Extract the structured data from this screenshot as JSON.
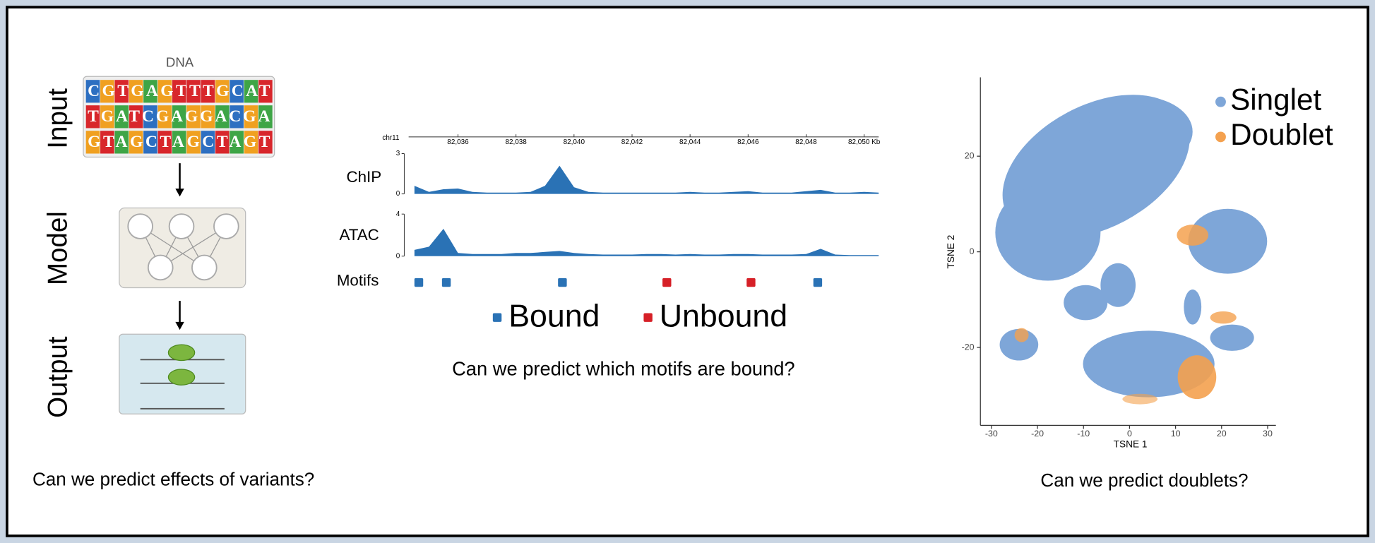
{
  "left_panel": {
    "dna_label": "DNA",
    "sequences": [
      "CGTGAGTTTGCAT",
      "TGATCGAGGACGA",
      "GTAGCTAGCTAGT"
    ],
    "steps": [
      "Input",
      "Model",
      "Output"
    ],
    "caption": "Can we predict effects of variants?"
  },
  "chart_data": [
    {
      "type": "area",
      "chromosome": "chr11",
      "xlim": [
        82034.3,
        82050.5
      ],
      "xticks": [
        {
          "value": 82036,
          "label": "82,036"
        },
        {
          "value": 82038,
          "label": "82,038"
        },
        {
          "value": 82040,
          "label": "82,040"
        },
        {
          "value": 82042,
          "label": "82,042"
        },
        {
          "value": 82044,
          "label": "82,044"
        },
        {
          "value": 82046,
          "label": "82,046"
        },
        {
          "value": 82048,
          "label": "82,048"
        },
        {
          "value": 82050,
          "label": "82,050 Kb"
        }
      ],
      "x": [
        82034.5,
        82035,
        82035.5,
        82036,
        82036.5,
        82037,
        82037.5,
        82038,
        82038.5,
        82039,
        82039.5,
        82040,
        82040.5,
        82041,
        82041.5,
        82042,
        82042.5,
        82043,
        82043.5,
        82044,
        82044.5,
        82045,
        82045.5,
        82046,
        82046.5,
        82047,
        82047.5,
        82048,
        82048.5,
        82049,
        82049.5,
        82050,
        82050.5
      ],
      "tracks": [
        {
          "name": "ChIP",
          "color": "#2a72b5",
          "ylim": [
            0,
            3
          ],
          "yticks": [
            0,
            3
          ],
          "values": [
            0.6,
            0.15,
            0.35,
            0.4,
            0.15,
            0.1,
            0.1,
            0.1,
            0.15,
            0.6,
            2.1,
            0.5,
            0.15,
            0.1,
            0.1,
            0.1,
            0.1,
            0.1,
            0.1,
            0.15,
            0.1,
            0.1,
            0.15,
            0.2,
            0.1,
            0.1,
            0.1,
            0.2,
            0.3,
            0.1,
            0.1,
            0.15,
            0.1
          ]
        },
        {
          "name": "ATAC",
          "color": "#2a72b5",
          "ylim": [
            0,
            4
          ],
          "yticks": [
            0,
            4
          ],
          "values": [
            0.6,
            0.9,
            2.6,
            0.3,
            0.2,
            0.2,
            0.2,
            0.3,
            0.3,
            0.4,
            0.5,
            0.3,
            0.2,
            0.15,
            0.15,
            0.15,
            0.2,
            0.2,
            0.15,
            0.2,
            0.15,
            0.15,
            0.2,
            0.2,
            0.15,
            0.15,
            0.15,
            0.2,
            0.7,
            0.15,
            0.1,
            0.1,
            0.1
          ]
        }
      ],
      "motifs": {
        "label": "Motifs",
        "positions": [
          82034.65,
          82035.6,
          82039.6,
          82043.2,
          82046.1,
          82048.4
        ],
        "colors": [
          "#2a72b5",
          "#2a72b5",
          "#2a72b5",
          "#d62027",
          "#d62027",
          "#2a72b5"
        ]
      },
      "legend": [
        {
          "name": "Bound",
          "color": "#2a72b5"
        },
        {
          "name": "Unbound",
          "color": "#d62027"
        }
      ],
      "caption": "Can we predict which motifs are bound?"
    },
    {
      "type": "scatter",
      "xlabel": "TSNE 1",
      "ylabel": "TSNE 2",
      "xlim": [
        -32.4,
        31.8
      ],
      "ylim": [
        -36.3,
        36.5
      ],
      "xticks": [
        -30,
        -20,
        -10,
        0,
        10,
        20,
        30
      ],
      "yticks": [
        20,
        0,
        -20
      ],
      "series": [
        {
          "name": "Singlet",
          "color": "#7ea6d8"
        },
        {
          "name": "Doublet",
          "color": "#f4a14f"
        }
      ],
      "caption": "Can we predict doublets?"
    }
  ]
}
